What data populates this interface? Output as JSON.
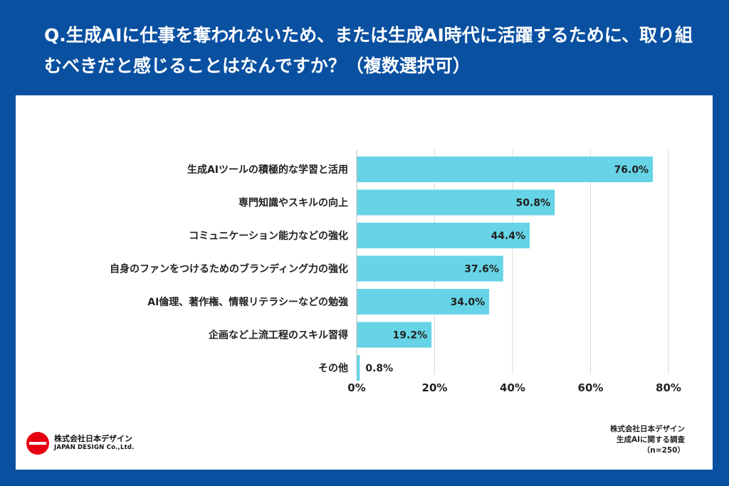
{
  "header": {
    "title": "Q.生成AIに仕事を奪われないため、または生成AI時代に活躍するために、取り組むべきだと感じることはなんですか？（複数選択可）"
  },
  "chart_data": {
    "type": "bar",
    "orientation": "horizontal",
    "categories": [
      "生成AIツールの積極的な学習と活用",
      "専門知識やスキルの向上",
      "コミュニケーション能力などの強化",
      "自身のファンをつけるためのブランディング力の強化",
      "AI倫理、著作権、情報リテラシーなどの勉強",
      "企画など上流工程のスキル習得",
      "その他"
    ],
    "values": [
      76.0,
      50.8,
      44.4,
      37.6,
      34.0,
      19.2,
      0.8
    ],
    "value_labels": [
      "76.0%",
      "50.8%",
      "44.4%",
      "37.6%",
      "34.0%",
      "19.2%",
      "0.8%"
    ],
    "xlim": [
      0,
      80
    ],
    "xticks": [
      0,
      20,
      40,
      60,
      80
    ],
    "xtick_labels": [
      "0%",
      "20%",
      "40%",
      "60%",
      "80%"
    ],
    "grid": true,
    "bar_color": "#66d4e6",
    "grid_color": "#d9d9d9"
  },
  "footer": {
    "logo_jp": "株式会社日本デザイン",
    "logo_en": "JAPAN DESIGN Co.,Ltd.",
    "source_lines": [
      "株式会社日本デザイン",
      "生成AIに関する調査",
      "（n=250）"
    ]
  },
  "colors": {
    "background": "#0a50a1",
    "panel": "#ffffff",
    "logo_red": "#e60012"
  }
}
